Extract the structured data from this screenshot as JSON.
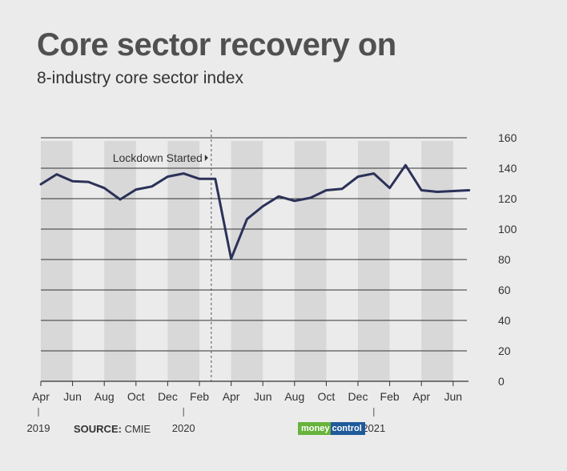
{
  "title": "Core sector recovery on",
  "subtitle": "8-industry core sector index",
  "source": {
    "label": "SOURCE:",
    "value": "CMIE"
  },
  "logo": {
    "part1": "money",
    "part2": "control"
  },
  "colors": {
    "line": "#2b3158",
    "band": "#d8d8d8",
    "background": "#ebebeb",
    "grid": "#333333"
  },
  "chart_data": {
    "type": "line",
    "title": "",
    "xlabel": "",
    "ylabel": "",
    "ylim": [
      0,
      160
    ],
    "yticks": [
      0,
      20,
      40,
      60,
      80,
      100,
      120,
      140,
      160
    ],
    "x": [
      "Apr 2019",
      "May 2019",
      "Jun 2019",
      "Jul 2019",
      "Aug 2019",
      "Sep 2019",
      "Oct 2019",
      "Nov 2019",
      "Dec 2019",
      "Jan 2020",
      "Feb 2020",
      "Mar 2020",
      "Apr 2020",
      "May 2020",
      "Jun 2020",
      "Jul 2020",
      "Aug 2020",
      "Sep 2020",
      "Oct 2020",
      "Nov 2020",
      "Dec 2020",
      "Jan 2021",
      "Feb 2021",
      "Mar 2021",
      "Apr 2021",
      "May 2021",
      "Jun 2021",
      "Jul 2021"
    ],
    "series": [
      {
        "values": [
          129.5,
          136,
          131.5,
          131,
          127,
          119.5,
          126,
          128,
          134.5,
          136.5,
          133,
          133,
          80.5,
          106.5,
          115,
          121.5,
          118.5,
          120.5,
          125.5,
          126.5,
          134.5,
          136.5,
          127,
          142,
          125.5,
          124.5,
          125,
          125.5
        ]
      }
    ],
    "x_tick_labels": [
      "Apr",
      "Jun",
      "Aug",
      "Oct",
      "Dec",
      "Feb",
      "Apr",
      "Jun",
      "Aug",
      "Oct",
      "Dec",
      "Feb",
      "Apr",
      "Jun"
    ],
    "year_labels": [
      "2019",
      "2020",
      "2021"
    ],
    "annotations": [
      {
        "text": "Lockdown Started",
        "x": "Mar 2020"
      }
    ],
    "grid": true
  }
}
